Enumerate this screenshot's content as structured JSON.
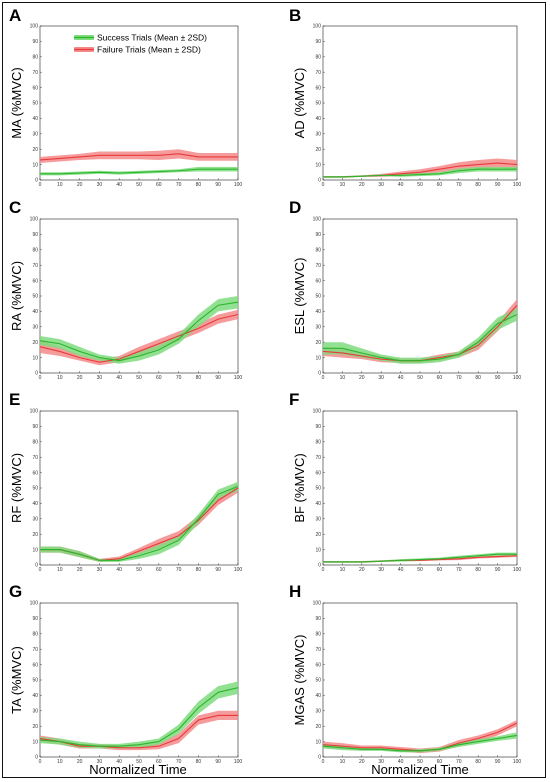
{
  "colors": {
    "success": "#2bb52b",
    "success_band": "#7fdc7f",
    "failure": "#e83a3a",
    "failure_band": "#f58a8a"
  },
  "legend": {
    "success_label": "Success Trials (Mean ± 2SD)",
    "failure_label": "Failure Trials (Mean ± 2SD)"
  },
  "xlabel_left": "Normalized Time",
  "xlabel_right": "Normalized Time",
  "chart_data": [
    {
      "panel": "A",
      "type": "area",
      "ylabel": "MA (%MVC)",
      "xlim": [
        0,
        100
      ],
      "ylim": [
        0,
        100
      ],
      "x": [
        0,
        10,
        20,
        30,
        40,
        50,
        60,
        70,
        80,
        90,
        100
      ],
      "xticks": [
        0,
        10,
        20,
        30,
        40,
        50,
        60,
        70,
        80,
        90,
        100
      ],
      "yticks": [
        0,
        10,
        20,
        30,
        40,
        50,
        60,
        70,
        80,
        90,
        100
      ],
      "series": [
        {
          "name": "Success",
          "mean": [
            4,
            4,
            4.5,
            5,
            4.5,
            5,
            5.5,
            6,
            7,
            7,
            7
          ],
          "sd2": [
            1,
            1,
            1,
            1,
            1,
            1,
            1,
            1,
            1.5,
            1.5,
            1.5
          ]
        },
        {
          "name": "Failure",
          "mean": [
            13,
            14,
            15,
            16,
            16,
            16,
            16,
            17,
            15,
            15,
            15
          ],
          "sd2": [
            2,
            2,
            2,
            2.5,
            2.5,
            2.5,
            3,
            3,
            2.5,
            2.5,
            2.5
          ]
        }
      ]
    },
    {
      "panel": "B",
      "type": "area",
      "ylabel": "AD (%MVC)",
      "xlim": [
        0,
        100
      ],
      "ylim": [
        0,
        100
      ],
      "x": [
        0,
        10,
        20,
        30,
        40,
        50,
        60,
        70,
        80,
        90,
        100
      ],
      "xticks": [
        0,
        10,
        20,
        30,
        40,
        50,
        60,
        70,
        80,
        90,
        100
      ],
      "yticks": [
        0,
        10,
        20,
        30,
        40,
        50,
        60,
        70,
        80,
        90,
        100
      ],
      "series": [
        {
          "name": "Success",
          "mean": [
            2,
            2,
            2.5,
            3,
            3,
            3.5,
            4,
            6,
            7,
            7,
            7
          ],
          "sd2": [
            0.5,
            0.5,
            0.5,
            0.5,
            1,
            1,
            1,
            1.5,
            1.5,
            1.5,
            1.5
          ]
        },
        {
          "name": "Failure",
          "mean": [
            2,
            2,
            2.5,
            3,
            4,
            5,
            7,
            9,
            10,
            11,
            10
          ],
          "sd2": [
            0.5,
            0.5,
            0.5,
            1,
            1.5,
            2,
            2,
            2.5,
            3,
            3,
            3
          ]
        }
      ]
    },
    {
      "panel": "C",
      "type": "area",
      "ylabel": "RA (%MVC)",
      "xlim": [
        0,
        100
      ],
      "ylim": [
        0,
        100
      ],
      "x": [
        0,
        10,
        20,
        30,
        40,
        50,
        60,
        70,
        80,
        90,
        100
      ],
      "xticks": [
        0,
        10,
        20,
        30,
        40,
        50,
        60,
        70,
        80,
        90,
        100
      ],
      "yticks": [
        0,
        10,
        20,
        30,
        40,
        50,
        60,
        70,
        80,
        90,
        100
      ],
      "series": [
        {
          "name": "Success",
          "mean": [
            21,
            19,
            14,
            10,
            8,
            11,
            15,
            22,
            34,
            44,
            46
          ],
          "sd2": [
            3,
            3,
            3,
            2,
            2,
            3,
            3,
            3,
            4,
            4,
            4
          ]
        },
        {
          "name": "Failure",
          "mean": [
            17,
            14,
            10,
            7,
            9,
            14,
            19,
            24,
            29,
            35,
            38
          ],
          "sd2": [
            4,
            3,
            2,
            2,
            2,
            3,
            3,
            3,
            3,
            3,
            3
          ]
        }
      ]
    },
    {
      "panel": "D",
      "type": "area",
      "ylabel": "ESL (%MVC)",
      "xlim": [
        0,
        100
      ],
      "ylim": [
        0,
        100
      ],
      "x": [
        0,
        10,
        20,
        30,
        40,
        50,
        60,
        70,
        80,
        90,
        100
      ],
      "xticks": [
        0,
        10,
        20,
        30,
        40,
        50,
        60,
        70,
        80,
        90,
        100
      ],
      "yticks": [
        0,
        10,
        20,
        30,
        40,
        50,
        60,
        70,
        80,
        90,
        100
      ],
      "series": [
        {
          "name": "Success",
          "mean": [
            16,
            16,
            13,
            10,
            8,
            8,
            9,
            12,
            20,
            32,
            38
          ],
          "sd2": [
            4,
            4,
            3,
            2,
            2,
            2,
            2,
            2,
            3,
            4,
            4
          ]
        },
        {
          "name": "Failure",
          "mean": [
            14,
            13,
            11,
            9,
            8,
            8,
            10,
            12,
            18,
            30,
            44
          ],
          "sd2": [
            3,
            3,
            2,
            2,
            1.5,
            1.5,
            2,
            2,
            3,
            3,
            4
          ]
        }
      ]
    },
    {
      "panel": "E",
      "type": "area",
      "ylabel": "RF (%MVC)",
      "xlim": [
        0,
        100
      ],
      "ylim": [
        0,
        100
      ],
      "x": [
        0,
        10,
        20,
        30,
        40,
        50,
        60,
        70,
        80,
        90,
        100
      ],
      "xticks": [
        0,
        10,
        20,
        30,
        40,
        50,
        60,
        70,
        80,
        90,
        100
      ],
      "yticks": [
        0,
        10,
        20,
        30,
        40,
        50,
        60,
        70,
        80,
        90,
        100
      ],
      "series": [
        {
          "name": "Success",
          "mean": [
            10,
            10,
            7,
            3,
            3,
            6,
            10,
            16,
            30,
            46,
            51
          ],
          "sd2": [
            2,
            2,
            2,
            1,
            1,
            2,
            3,
            3,
            3,
            3,
            3
          ]
        },
        {
          "name": "Failure",
          "mean": [
            10,
            10,
            7,
            3,
            4,
            9,
            14,
            19,
            29,
            42,
            50
          ],
          "sd2": [
            2,
            2,
            2,
            1,
            1.5,
            2,
            3,
            3,
            3,
            3,
            3
          ]
        }
      ]
    },
    {
      "panel": "F",
      "type": "area",
      "ylabel": "BF (%MVC)",
      "xlim": [
        0,
        100
      ],
      "ylim": [
        0,
        100
      ],
      "x": [
        0,
        10,
        20,
        30,
        40,
        50,
        60,
        70,
        80,
        90,
        100
      ],
      "xticks": [
        0,
        10,
        20,
        30,
        40,
        50,
        60,
        70,
        80,
        90,
        100
      ],
      "yticks": [
        0,
        10,
        20,
        30,
        40,
        50,
        60,
        70,
        80,
        90,
        100
      ],
      "series": [
        {
          "name": "Success",
          "mean": [
            2,
            2,
            2,
            2.5,
            3,
            3.5,
            4,
            5,
            6,
            7,
            7
          ],
          "sd2": [
            0.5,
            0.5,
            0.5,
            0.5,
            0.8,
            0.8,
            0.8,
            1,
            1,
            1,
            1
          ]
        },
        {
          "name": "Failure",
          "mean": [
            2,
            2,
            2,
            2.5,
            3,
            3,
            3.5,
            4,
            5,
            5.5,
            6
          ],
          "sd2": [
            0.5,
            0.5,
            0.5,
            0.5,
            0.5,
            0.5,
            0.5,
            0.8,
            0.8,
            0.8,
            0.8
          ]
        }
      ]
    },
    {
      "panel": "G",
      "type": "area",
      "ylabel": "TA (%MVC)",
      "xlim": [
        0,
        100
      ],
      "ylim": [
        0,
        100
      ],
      "x": [
        0,
        10,
        20,
        30,
        40,
        50,
        60,
        70,
        80,
        90,
        100
      ],
      "xticks": [
        0,
        10,
        20,
        30,
        40,
        50,
        60,
        70,
        80,
        90,
        100
      ],
      "yticks": [
        0,
        10,
        20,
        30,
        40,
        50,
        60,
        70,
        80,
        90,
        100
      ],
      "series": [
        {
          "name": "Success",
          "mean": [
            11,
            10,
            8,
            7,
            7,
            8,
            10,
            18,
            32,
            42,
            45
          ],
          "sd2": [
            2,
            2,
            2,
            1.5,
            1.5,
            2,
            2,
            3,
            4,
            4,
            4
          ]
        },
        {
          "name": "Failure",
          "mean": [
            12,
            10,
            7,
            7,
            6,
            6,
            7,
            12,
            24,
            27,
            27
          ],
          "sd2": [
            2,
            2,
            1.5,
            1.5,
            1.5,
            1.5,
            2,
            3,
            3,
            3,
            3
          ]
        }
      ]
    },
    {
      "panel": "H",
      "type": "area",
      "ylabel": "MGAS (%MVC)",
      "xlim": [
        0,
        100
      ],
      "ylim": [
        0,
        100
      ],
      "x": [
        0,
        10,
        20,
        30,
        40,
        50,
        60,
        70,
        80,
        90,
        100
      ],
      "xticks": [
        0,
        10,
        20,
        30,
        40,
        50,
        60,
        70,
        80,
        90,
        100
      ],
      "yticks": [
        0,
        10,
        20,
        30,
        40,
        50,
        60,
        70,
        80,
        90,
        100
      ],
      "series": [
        {
          "name": "Success",
          "mean": [
            7,
            6,
            5,
            5,
            4,
            4,
            5,
            8,
            10,
            12,
            14
          ],
          "sd2": [
            1.5,
            1.5,
            1,
            1,
            1,
            1,
            1,
            1.5,
            1.5,
            1.5,
            2
          ]
        },
        {
          "name": "Failure",
          "mean": [
            8,
            7,
            6,
            6,
            5,
            4,
            5,
            9,
            12,
            16,
            22
          ],
          "sd2": [
            2,
            2,
            1.5,
            1.5,
            1.5,
            1.5,
            1.5,
            2,
            2,
            2,
            2
          ]
        }
      ]
    }
  ]
}
